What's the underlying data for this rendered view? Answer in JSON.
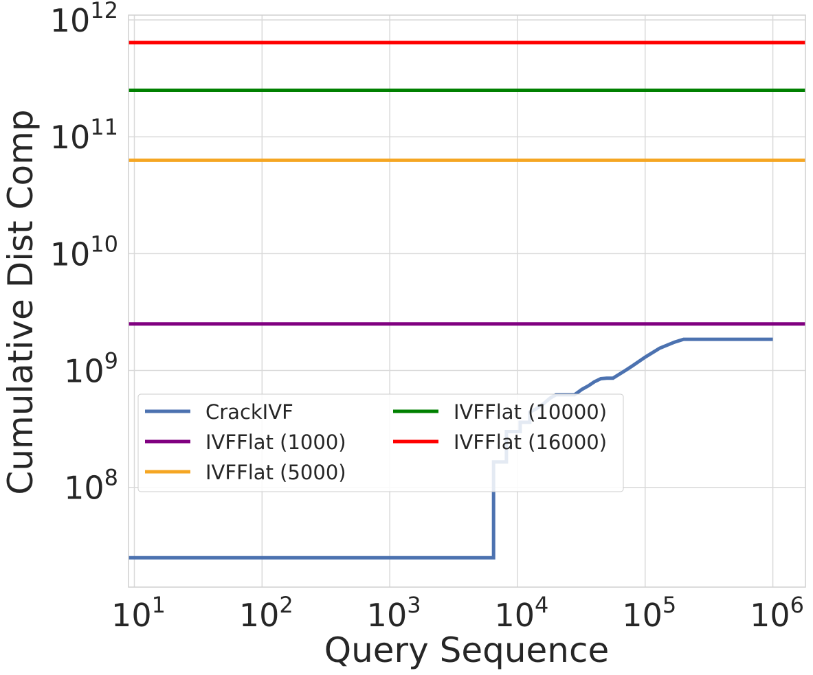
{
  "chart_data": {
    "type": "line",
    "xscale": "log",
    "yscale": "log",
    "xlabel": "Query Sequence",
    "ylabel": "Cumulative Dist Comp",
    "xlim": [
      9,
      1800000
    ],
    "ylim": [
      14000000,
      1100000000000
    ],
    "grid": true,
    "legend_location": "center-left",
    "x_ticks": [
      {
        "value": 10,
        "base": "10",
        "exp": "1"
      },
      {
        "value": 100,
        "base": "10",
        "exp": "2"
      },
      {
        "value": 1000,
        "base": "10",
        "exp": "3"
      },
      {
        "value": 10000,
        "base": "10",
        "exp": "4"
      },
      {
        "value": 100000,
        "base": "10",
        "exp": "5"
      },
      {
        "value": 1000000,
        "base": "10",
        "exp": "6"
      }
    ],
    "y_ticks": [
      {
        "value": 100000000,
        "base": "10",
        "exp": "8"
      },
      {
        "value": 1000000000,
        "base": "10",
        "exp": "9"
      },
      {
        "value": 10000000000,
        "base": "10",
        "exp": "10"
      },
      {
        "value": 100000000000,
        "base": "10",
        "exp": "11"
      },
      {
        "value": 1000000000000,
        "base": "10",
        "exp": "12"
      }
    ],
    "series": [
      {
        "name": "CrackIVF",
        "color": "#4c72b0",
        "x": [
          9,
          6500,
          6500,
          8200,
          8200,
          10500,
          10500,
          12500,
          12500,
          14000,
          16000,
          18000,
          20000,
          28000,
          32000,
          36000,
          40000,
          45000,
          50000,
          56000,
          60000,
          70000,
          80000,
          100000,
          130000,
          170000,
          200000,
          1000000
        ],
        "y": [
          25000000,
          25000000,
          165000000,
          165000000,
          300000000,
          300000000,
          360000000,
          360000000,
          440000000,
          470000000,
          520000000,
          580000000,
          620000000,
          620000000,
          690000000,
          740000000,
          800000000,
          850000000,
          860000000,
          860000000,
          900000000,
          1000000000,
          1100000000,
          1300000000,
          1550000000,
          1750000000,
          1850000000,
          1850000000
        ]
      },
      {
        "name": "IVFFlat (1000)",
        "color": "#800080",
        "x": [
          9,
          1800000
        ],
        "y": [
          2500000000,
          2500000000
        ]
      },
      {
        "name": "IVFFlat (5000)",
        "color": "#f5a623",
        "x": [
          9,
          1800000
        ],
        "y": [
          63000000000,
          63000000000
        ]
      },
      {
        "name": "IVFFlat (10000)",
        "color": "#008000",
        "x": [
          9,
          1800000
        ],
        "y": [
          250000000000,
          250000000000
        ]
      },
      {
        "name": "IVFFlat (16000)",
        "color": "#ff0000",
        "x": [
          9,
          1800000
        ],
        "y": [
          640000000000,
          640000000000
        ]
      }
    ]
  }
}
